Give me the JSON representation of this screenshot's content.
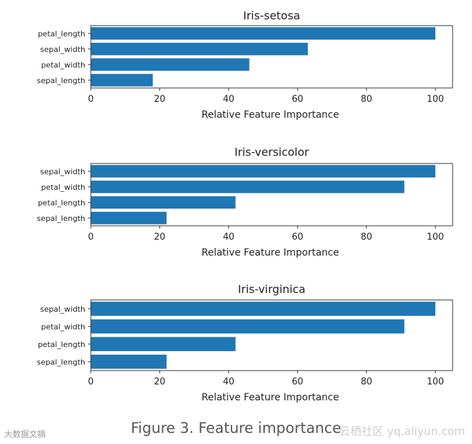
{
  "chart_data": [
    {
      "type": "bar",
      "orientation": "horizontal",
      "title": "Iris-setosa",
      "xlabel": "Relative Feature Importance",
      "xlim": [
        0,
        105
      ],
      "xticks": [
        0,
        20,
        40,
        60,
        80,
        100
      ],
      "categories": [
        "petal_length",
        "sepal_width",
        "petal_width",
        "sepal_length"
      ],
      "values": [
        100,
        63,
        46,
        18
      ],
      "color": "#1f77b4"
    },
    {
      "type": "bar",
      "orientation": "horizontal",
      "title": "Iris-versicolor",
      "xlabel": "Relative Feature Importance",
      "xlim": [
        0,
        105
      ],
      "xticks": [
        0,
        20,
        40,
        60,
        80,
        100
      ],
      "categories": [
        "sepal_width",
        "petal_width",
        "petal_length",
        "sepal_length"
      ],
      "values": [
        100,
        91,
        42,
        22
      ],
      "color": "#1f77b4"
    },
    {
      "type": "bar",
      "orientation": "horizontal",
      "title": "Iris-virginica",
      "xlabel": "Relative Feature Importance",
      "xlim": [
        0,
        105
      ],
      "xticks": [
        0,
        20,
        40,
        60,
        80,
        100
      ],
      "categories": [
        "sepal_width",
        "petal_width",
        "petal_length",
        "sepal_length"
      ],
      "values": [
        100,
        91,
        42,
        22
      ],
      "color": "#1f77b4"
    }
  ],
  "caption": "Figure 3. Feature importance",
  "watermark_left": "大数据文摘",
  "watermark_right": "云栖社区 yq.aliyun.com"
}
